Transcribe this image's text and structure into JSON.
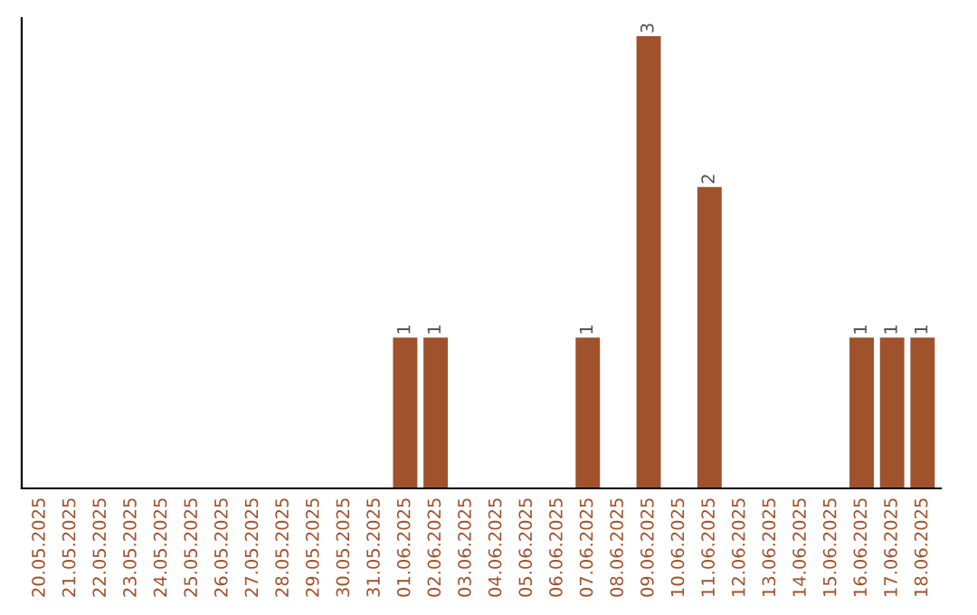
{
  "chart_data": {
    "type": "bar",
    "categories": [
      "20.05.2025",
      "21.05.2025",
      "22.05.2025",
      "23.05.2025",
      "24.05.2025",
      "25.05.2025",
      "26.05.2025",
      "27.05.2025",
      "28.05.2025",
      "29.05.2025",
      "30.05.2025",
      "31.05.2025",
      "01.06.2025",
      "02.06.2025",
      "03.06.2025",
      "04.06.2025",
      "05.06.2025",
      "06.06.2025",
      "07.06.2025",
      "08.06.2025",
      "09.06.2025",
      "10.06.2025",
      "11.06.2025",
      "12.06.2025",
      "13.06.2025",
      "14.06.2025",
      "15.06.2025",
      "16.06.2025",
      "17.06.2025",
      "18.06.2025"
    ],
    "values": [
      null,
      null,
      null,
      null,
      null,
      null,
      null,
      null,
      null,
      null,
      null,
      null,
      1,
      1,
      null,
      null,
      null,
      null,
      1,
      null,
      3,
      null,
      2,
      null,
      null,
      null,
      null,
      1,
      1,
      1
    ],
    "value_labels": [
      null,
      null,
      null,
      null,
      null,
      null,
      null,
      null,
      null,
      null,
      null,
      null,
      "1",
      "1",
      null,
      null,
      null,
      null,
      "1",
      null,
      "3",
      null,
      "2",
      null,
      null,
      null,
      null,
      "1",
      "1",
      "1"
    ],
    "color": "#a0522d",
    "tick_labels": "x",
    "grid": false
  }
}
